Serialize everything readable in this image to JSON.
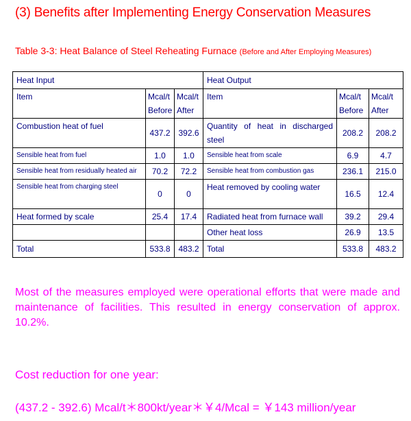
{
  "document": {
    "title": "(3) Benefits after Implementing Energy Conservation Measures",
    "caption_main": "Table 3-3: Heat Balance of Steel Reheating Furnace ",
    "caption_sub": "(Before and After Employing Measures)"
  },
  "table": {
    "input_header": "Heat Input",
    "output_header": "Heat Output",
    "col_item": "Item",
    "col_unit": "Mcal/t",
    "col_before": "Before",
    "col_after": "After",
    "rows": [
      {
        "in_item": "Combustion heat of fuel",
        "in_before": "437.2",
        "in_after": "392.6",
        "out_item": "Quantity of heat in discharged steel",
        "out_before": "208.2",
        "out_after": "208.2"
      },
      {
        "in_item": "Sensible heat from fuel",
        "in_before": "1.0",
        "in_after": "1.0",
        "out_item": "Sensible heat from scale",
        "out_before": "6.9",
        "out_after": "4.7"
      },
      {
        "in_item": "Sensible heat from residually heated air",
        "in_before": "70.2",
        "in_after": "72.2",
        "out_item": "Sensible heat from combustion gas",
        "out_before": "236.1",
        "out_after": "215.0"
      },
      {
        "in_item": "Sensible heat from charging steel",
        "in_before": "0",
        "in_after": "0",
        "out_item": "Heat removed by cooling water",
        "out_before": "16.5",
        "out_after": "12.4"
      },
      {
        "in_item": "Heat formed by scale",
        "in_before": "25.4",
        "in_after": "17.4",
        "out_item": "Radiated heat from furnace wall",
        "out_before": "39.2",
        "out_after": "29.4"
      },
      {
        "in_item": "",
        "in_before": "",
        "in_after": "",
        "out_item": "Other heat loss",
        "out_before": "26.9",
        "out_after": "13.5"
      }
    ],
    "total": {
      "in_item": "Total",
      "in_before": "533.8",
      "in_after": "483.2",
      "out_item": "Total",
      "out_before": "533.8",
      "out_after": "483.2"
    }
  },
  "paragraph": "Most of the measures employed were operational efforts that were made and maintenance of facilities. This resulted in energy conservation of approx. 10.2%.",
  "cost": {
    "label": "Cost reduction for one year:",
    "formula": "(437.2 - 392.6) Mcal/t＊800kt/year＊￥4/Mcal = ￥143 million/year"
  },
  "colors": {
    "heading": "#ff0000",
    "table_text": "#000080",
    "body_text": "#ff00ff"
  }
}
